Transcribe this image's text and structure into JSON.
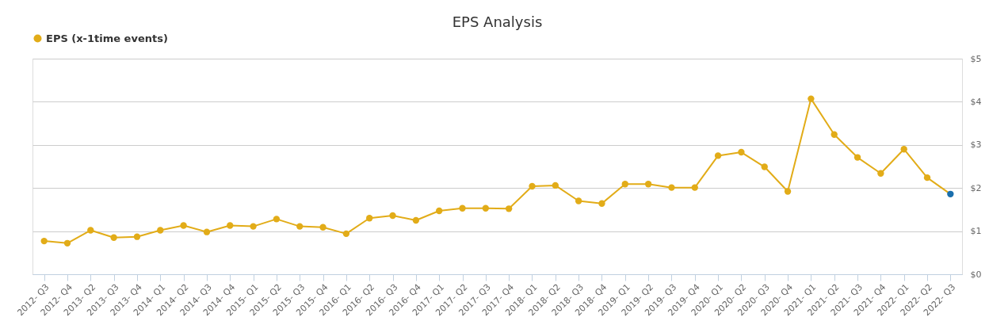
{
  "chart_data": {
    "type": "line",
    "title": "EPS Analysis",
    "categories": [
      "2012- Q3",
      "2012- Q4",
      "2013- Q2",
      "2013- Q3",
      "2013- Q4",
      "2014- Q1",
      "2014- Q2",
      "2014- Q3",
      "2014- Q4",
      "2015- Q1",
      "2015- Q2",
      "2015- Q3",
      "2015- Q4",
      "2016- Q1",
      "2016- Q2",
      "2016- Q3",
      "2016- Q4",
      "2017- Q1",
      "2017- Q2",
      "2017- Q3",
      "2017- Q4",
      "2018- Q1",
      "2018- Q2",
      "2018- Q3",
      "2018- Q4",
      "2019- Q1",
      "2019- Q2",
      "2019- Q3",
      "2019- Q4",
      "2020- Q1",
      "2020- Q2",
      "2020- Q3",
      "2020- Q4",
      "2021- Q1",
      "2021- Q2",
      "2021- Q3",
      "2021- Q4",
      "2022- Q1",
      "2022- Q2",
      "2022- Q3"
    ],
    "series": [
      {
        "name": "EPS (x-1time events)",
        "color": "#e2ac18",
        "colors": [
          "#e2ac18",
          "#e2ac18",
          "#e2ac18",
          "#e2ac18",
          "#e2ac18",
          "#e2ac18",
          "#e2ac18",
          "#e2ac18",
          "#e2ac18",
          "#e2ac18",
          "#e2ac18",
          "#e2ac18",
          "#e2ac18",
          "#e2ac18",
          "#e2ac18",
          "#e2ac18",
          "#e2ac18",
          "#e2ac18",
          "#e2ac18",
          "#e2ac18",
          "#e2ac18",
          "#e2ac18",
          "#e2ac18",
          "#e2ac18",
          "#e2ac18",
          "#e2ac18",
          "#e2ac18",
          "#e2ac18",
          "#e2ac18",
          "#e2ac18",
          "#e2ac18",
          "#e2ac18",
          "#e2ac18",
          "#e2ac18",
          "#e2ac18",
          "#e2ac18",
          "#e2ac18",
          "#e2ac18",
          "#e2ac18",
          "#1a6fad"
        ],
        "values": [
          0.77,
          0.72,
          1.02,
          0.85,
          0.87,
          1.02,
          1.13,
          0.98,
          1.13,
          1.11,
          1.28,
          1.11,
          1.09,
          0.94,
          1.3,
          1.36,
          1.25,
          1.47,
          1.53,
          1.53,
          1.52,
          2.04,
          2.06,
          1.7,
          1.64,
          2.09,
          2.09,
          2.01,
          2.01,
          2.75,
          2.83,
          2.49,
          1.92,
          4.07,
          3.24,
          2.71,
          2.34,
          2.9,
          2.24,
          1.86
        ]
      }
    ],
    "ylim": [
      0,
      5
    ],
    "yticks": [
      {
        "value": 0,
        "label": "$0"
      },
      {
        "value": 1,
        "label": "$1"
      },
      {
        "value": 2,
        "label": "$2"
      },
      {
        "value": 3,
        "label": "$3"
      },
      {
        "value": 4,
        "label": "$4"
      },
      {
        "value": 5,
        "label": "$5"
      }
    ],
    "grid": "y",
    "legend": "top",
    "marker": "circle",
    "line_style": "solid"
  }
}
